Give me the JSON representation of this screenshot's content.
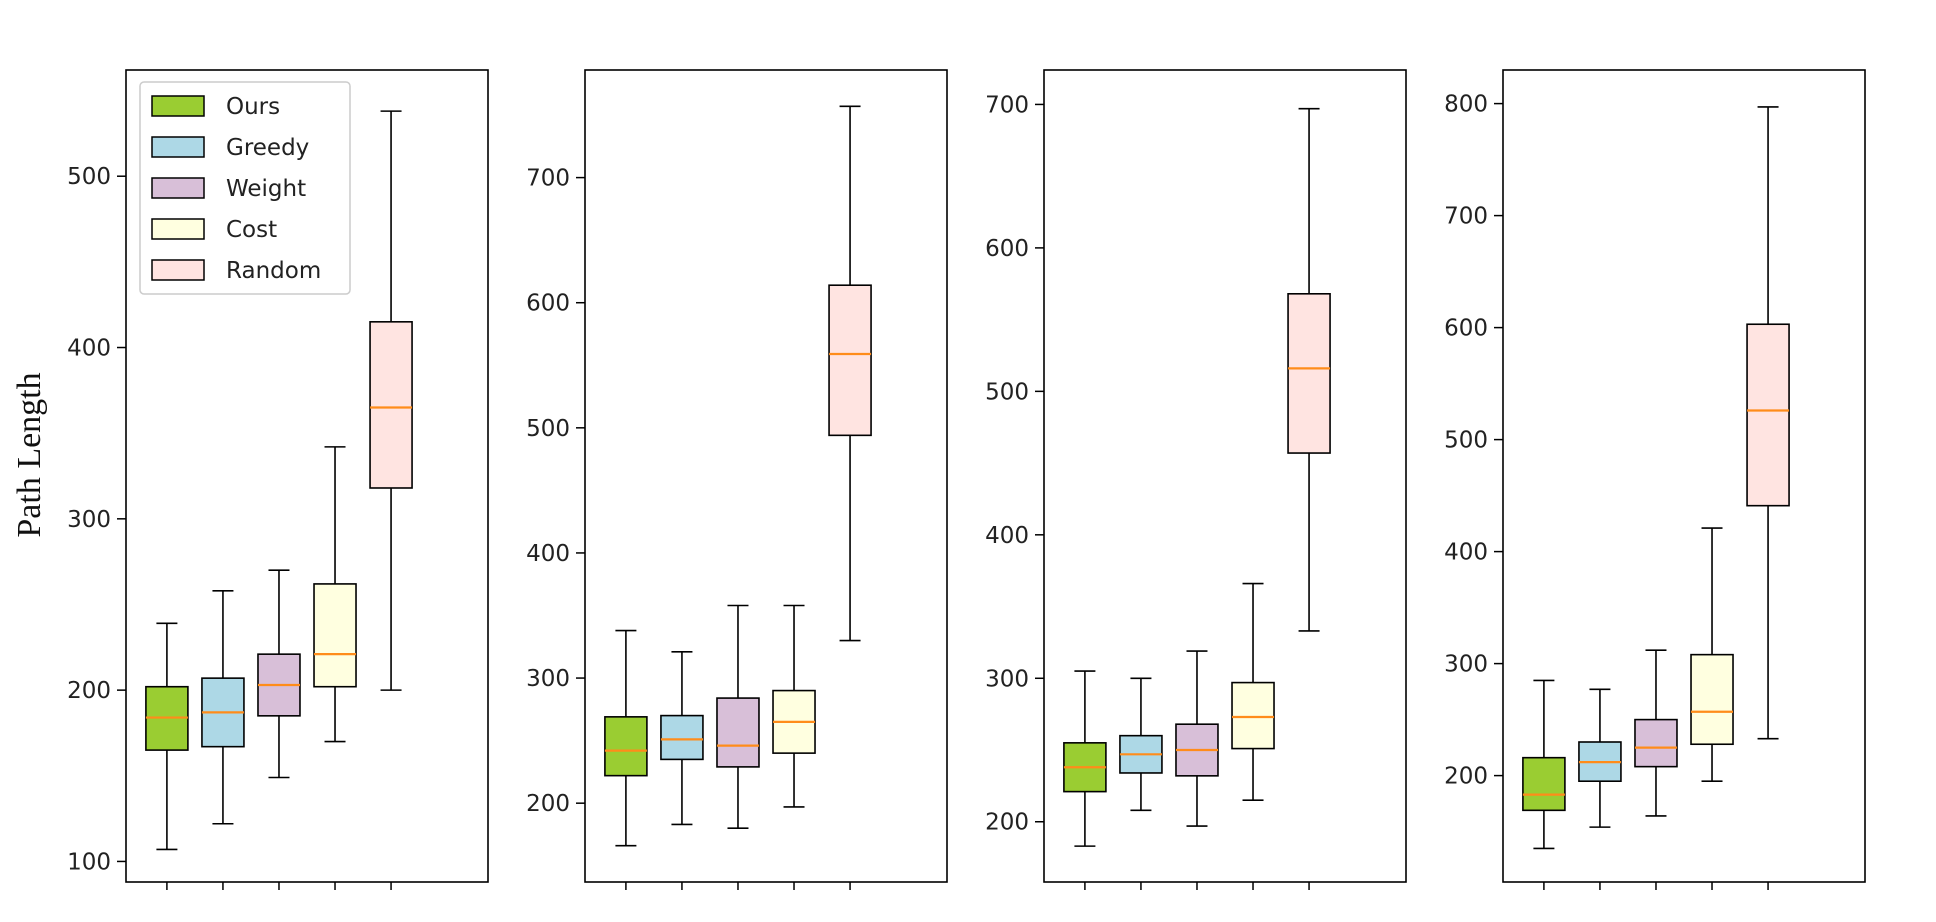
{
  "ylabel": "Path Length",
  "colors": {
    "median": "#ff8c1a",
    "edge": "#000000",
    "series": [
      "#9acd32",
      "#add8e6",
      "#d8bfd8",
      "#ffffe0",
      "#ffe4e1"
    ]
  },
  "legend": {
    "placement": "top-left of first panel",
    "entries": [
      "Ours",
      "Greedy",
      "Weight",
      "Cost",
      "Random"
    ]
  },
  "chart_data": [
    {
      "type": "box",
      "ylim": [
        88,
        562
      ],
      "yticks": [
        100,
        200,
        300,
        400,
        500
      ],
      "series": [
        {
          "name": "Ours",
          "whisker_low": 107,
          "q1": 165,
          "median": 184,
          "q3": 202,
          "whisker_high": 239
        },
        {
          "name": "Greedy",
          "whisker_low": 122,
          "q1": 167,
          "median": 187,
          "q3": 207,
          "whisker_high": 258
        },
        {
          "name": "Weight",
          "whisker_low": 149,
          "q1": 185,
          "median": 203,
          "q3": 221,
          "whisker_high": 270
        },
        {
          "name": "Cost",
          "whisker_low": 170,
          "q1": 202,
          "median": 221,
          "q3": 262,
          "whisker_high": 342
        },
        {
          "name": "Random",
          "whisker_low": 200,
          "q1": 318,
          "median": 365,
          "q3": 415,
          "whisker_high": 538
        }
      ]
    },
    {
      "type": "box",
      "ylim": [
        137,
        786
      ],
      "yticks": [
        200,
        300,
        400,
        500,
        600,
        700
      ],
      "series": [
        {
          "name": "Ours",
          "whisker_low": 166,
          "q1": 222,
          "median": 242,
          "q3": 269,
          "whisker_high": 338
        },
        {
          "name": "Greedy",
          "whisker_low": 183,
          "q1": 235,
          "median": 251,
          "q3": 270,
          "whisker_high": 321
        },
        {
          "name": "Weight",
          "whisker_low": 180,
          "q1": 229,
          "median": 246,
          "q3": 284,
          "whisker_high": 358
        },
        {
          "name": "Cost",
          "whisker_low": 197,
          "q1": 240,
          "median": 265,
          "q3": 290,
          "whisker_high": 358
        },
        {
          "name": "Random",
          "whisker_low": 330,
          "q1": 494,
          "median": 559,
          "q3": 614,
          "whisker_high": 757
        }
      ]
    },
    {
      "type": "box",
      "ylim": [
        158,
        724
      ],
      "yticks": [
        200,
        300,
        400,
        500,
        600,
        700
      ],
      "series": [
        {
          "name": "Ours",
          "whisker_low": 183,
          "q1": 221,
          "median": 238,
          "q3": 255,
          "whisker_high": 305
        },
        {
          "name": "Greedy",
          "whisker_low": 208,
          "q1": 234,
          "median": 247,
          "q3": 260,
          "whisker_high": 300
        },
        {
          "name": "Weight",
          "whisker_low": 197,
          "q1": 232,
          "median": 250,
          "q3": 268,
          "whisker_high": 319
        },
        {
          "name": "Cost",
          "whisker_low": 215,
          "q1": 251,
          "median": 273,
          "q3": 297,
          "whisker_high": 366
        },
        {
          "name": "Random",
          "whisker_low": 333,
          "q1": 457,
          "median": 516,
          "q3": 568,
          "whisker_high": 697
        }
      ]
    },
    {
      "type": "box",
      "ylim": [
        105,
        830
      ],
      "yticks": [
        200,
        300,
        400,
        500,
        600,
        700,
        800
      ],
      "series": [
        {
          "name": "Ours",
          "whisker_low": 135,
          "q1": 169,
          "median": 183,
          "q3": 216,
          "whisker_high": 285
        },
        {
          "name": "Greedy",
          "whisker_low": 154,
          "q1": 195,
          "median": 212,
          "q3": 230,
          "whisker_high": 277
        },
        {
          "name": "Weight",
          "whisker_low": 164,
          "q1": 208,
          "median": 225,
          "q3": 250,
          "whisker_high": 312
        },
        {
          "name": "Cost",
          "whisker_low": 195,
          "q1": 228,
          "median": 257,
          "q3": 308,
          "whisker_high": 421
        },
        {
          "name": "Random",
          "whisker_low": 233,
          "q1": 441,
          "median": 526,
          "q3": 603,
          "whisker_high": 797
        }
      ]
    }
  ]
}
